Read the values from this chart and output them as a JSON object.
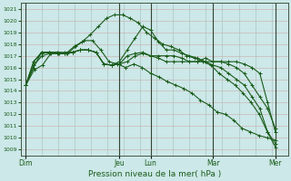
{
  "title": "",
  "xlabel": "Pression niveau de la mer( hPa )",
  "bg_color": "#cce8e8",
  "line_color": "#1a5c1a",
  "grid_major_color": "#bbbbcc",
  "grid_minor_color": "#ddcccc",
  "ylim": [
    1008.5,
    1021.5
  ],
  "yticks": [
    1009,
    1010,
    1011,
    1012,
    1013,
    1014,
    1015,
    1016,
    1017,
    1018,
    1019,
    1020,
    1021
  ],
  "day_labels": [
    "Dim",
    "Jeu",
    "Lun",
    "Mar",
    "Mer"
  ],
  "day_positions": [
    0,
    60,
    80,
    120,
    160
  ],
  "xlim": [
    -3,
    168
  ],
  "series": [
    [
      1014.5,
      1015.8,
      1016.2,
      1017.2,
      1017.2,
      1017.2,
      1017.8,
      1018.3,
      1018.3,
      1017.5,
      1016.5,
      1016.3,
      1016.0,
      1016.3,
      1016.0,
      1015.5,
      1015.2,
      1014.8,
      1014.5,
      1014.2,
      1013.8,
      1013.2,
      1012.8,
      1012.2,
      1012.0,
      1011.5,
      1010.8,
      1010.5,
      1010.2,
      1010.0,
      1009.8
    ],
    [
      1014.5,
      1016.2,
      1017.0,
      1017.2,
      1017.2,
      1017.2,
      1017.8,
      1018.2,
      1018.8,
      1019.5,
      1020.2,
      1020.5,
      1020.5,
      1020.2,
      1019.8,
      1019.0,
      1018.5,
      1018.0,
      1017.8,
      1017.5,
      1017.0,
      1016.8,
      1016.5,
      1016.2,
      1015.5,
      1015.0,
      1014.5,
      1013.8,
      1013.0,
      1012.0,
      1010.5,
      1009.2
    ],
    [
      1014.5,
      1016.5,
      1017.2,
      1017.3,
      1017.2,
      1017.2,
      1017.3,
      1017.5,
      1017.5,
      1017.3,
      1016.3,
      1016.2,
      1016.5,
      1017.5,
      1018.5,
      1019.5,
      1019.2,
      1018.2,
      1017.5,
      1017.5,
      1017.2,
      1017.0,
      1016.8,
      1016.5,
      1016.2,
      1016.0,
      1015.5,
      1015.0,
      1014.5,
      1013.5,
      1012.5,
      1010.5,
      1009.5
    ],
    [
      1014.5,
      1016.5,
      1017.3,
      1017.3,
      1017.3,
      1017.2,
      1017.3,
      1017.5,
      1017.5,
      1017.3,
      1016.3,
      1016.2,
      1016.3,
      1017.0,
      1017.2,
      1017.3,
      1017.0,
      1017.0,
      1017.0,
      1017.0,
      1016.8,
      1016.5,
      1016.5,
      1016.5,
      1016.5,
      1016.5,
      1016.5,
      1016.5,
      1016.3,
      1016.0,
      1015.5,
      1013.0,
      1010.5
    ],
    [
      1014.5,
      1016.0,
      1017.3,
      1017.3,
      1017.3,
      1017.3,
      1017.3,
      1017.5,
      1017.5,
      1017.3,
      1016.3,
      1016.2,
      1016.3,
      1016.5,
      1017.0,
      1017.2,
      1017.0,
      1016.8,
      1016.5,
      1016.5,
      1016.5,
      1016.5,
      1016.5,
      1016.8,
      1016.5,
      1016.5,
      1016.3,
      1016.0,
      1015.5,
      1014.5,
      1013.5,
      1012.5,
      1010.8
    ]
  ]
}
